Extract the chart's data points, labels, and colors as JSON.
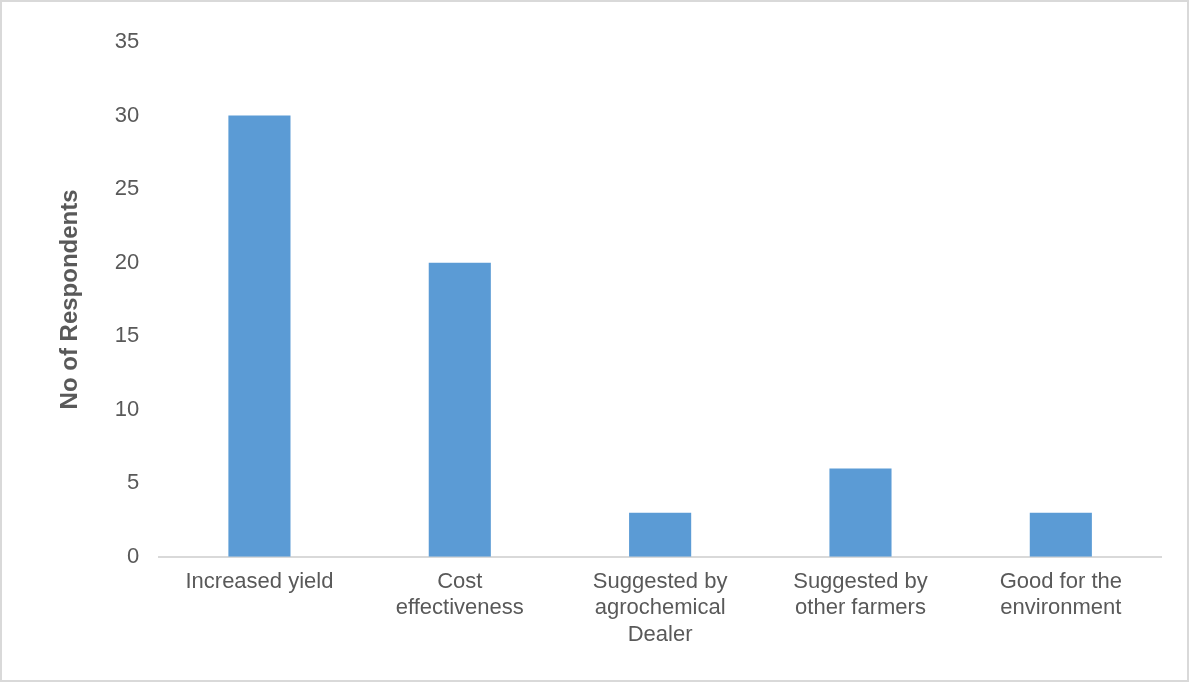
{
  "chart_data": {
    "type": "bar",
    "ylabel": "No of Respondents",
    "categories": [
      "Increased yield",
      "Cost effectiveness",
      "Suggested by agrochemical Dealer",
      "Suggested by other farmers",
      "Good for the environment"
    ],
    "values": [
      30,
      20,
      3,
      6,
      3
    ],
    "color": "#5b9bd5",
    "ylim": [
      0,
      35
    ],
    "yticks": [
      0,
      5,
      10,
      15,
      20,
      25,
      30,
      35
    ],
    "grid": false,
    "legend": false
  }
}
